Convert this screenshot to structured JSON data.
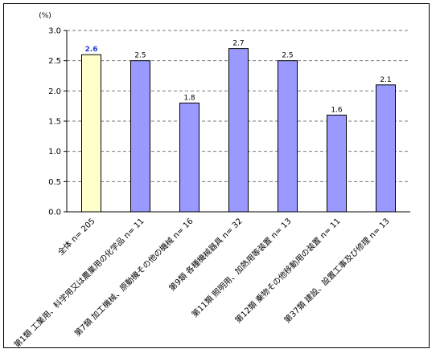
{
  "chart_data": {
    "type": "bar",
    "unit_label": "(%)",
    "categories": [
      "全体 n= 205",
      "第1類 工業用、科学用又は農業用の化学品 n= 11",
      "第7類 加工機械、原動機その他の機械 n= 16",
      "第9類 各種機械器具 n= 32",
      "第11類 照明用、加熱用等装置 n= 13",
      "第12類 乗物その他移動用の装置 n= 11",
      "第37類 建設、設置工事及び修理 n= 13"
    ],
    "values": [
      2.6,
      2.5,
      1.8,
      2.7,
      2.5,
      1.6,
      2.1
    ],
    "value_labels": [
      "2.6",
      "2.5",
      "1.8",
      "2.7",
      "2.5",
      "1.6",
      "2.1"
    ],
    "y_ticks": [
      "0.0",
      "0.5",
      "1.0",
      "1.5",
      "2.0",
      "2.5",
      "3.0"
    ],
    "ylim": [
      0,
      3.0
    ],
    "grid": "horizontal dashed",
    "colors": {
      "highlight_fill": "#ffffcc",
      "bar_fill": "#9999ff",
      "bar_stroke": "#000000",
      "highlight_label": "#1f3ecb"
    }
  }
}
